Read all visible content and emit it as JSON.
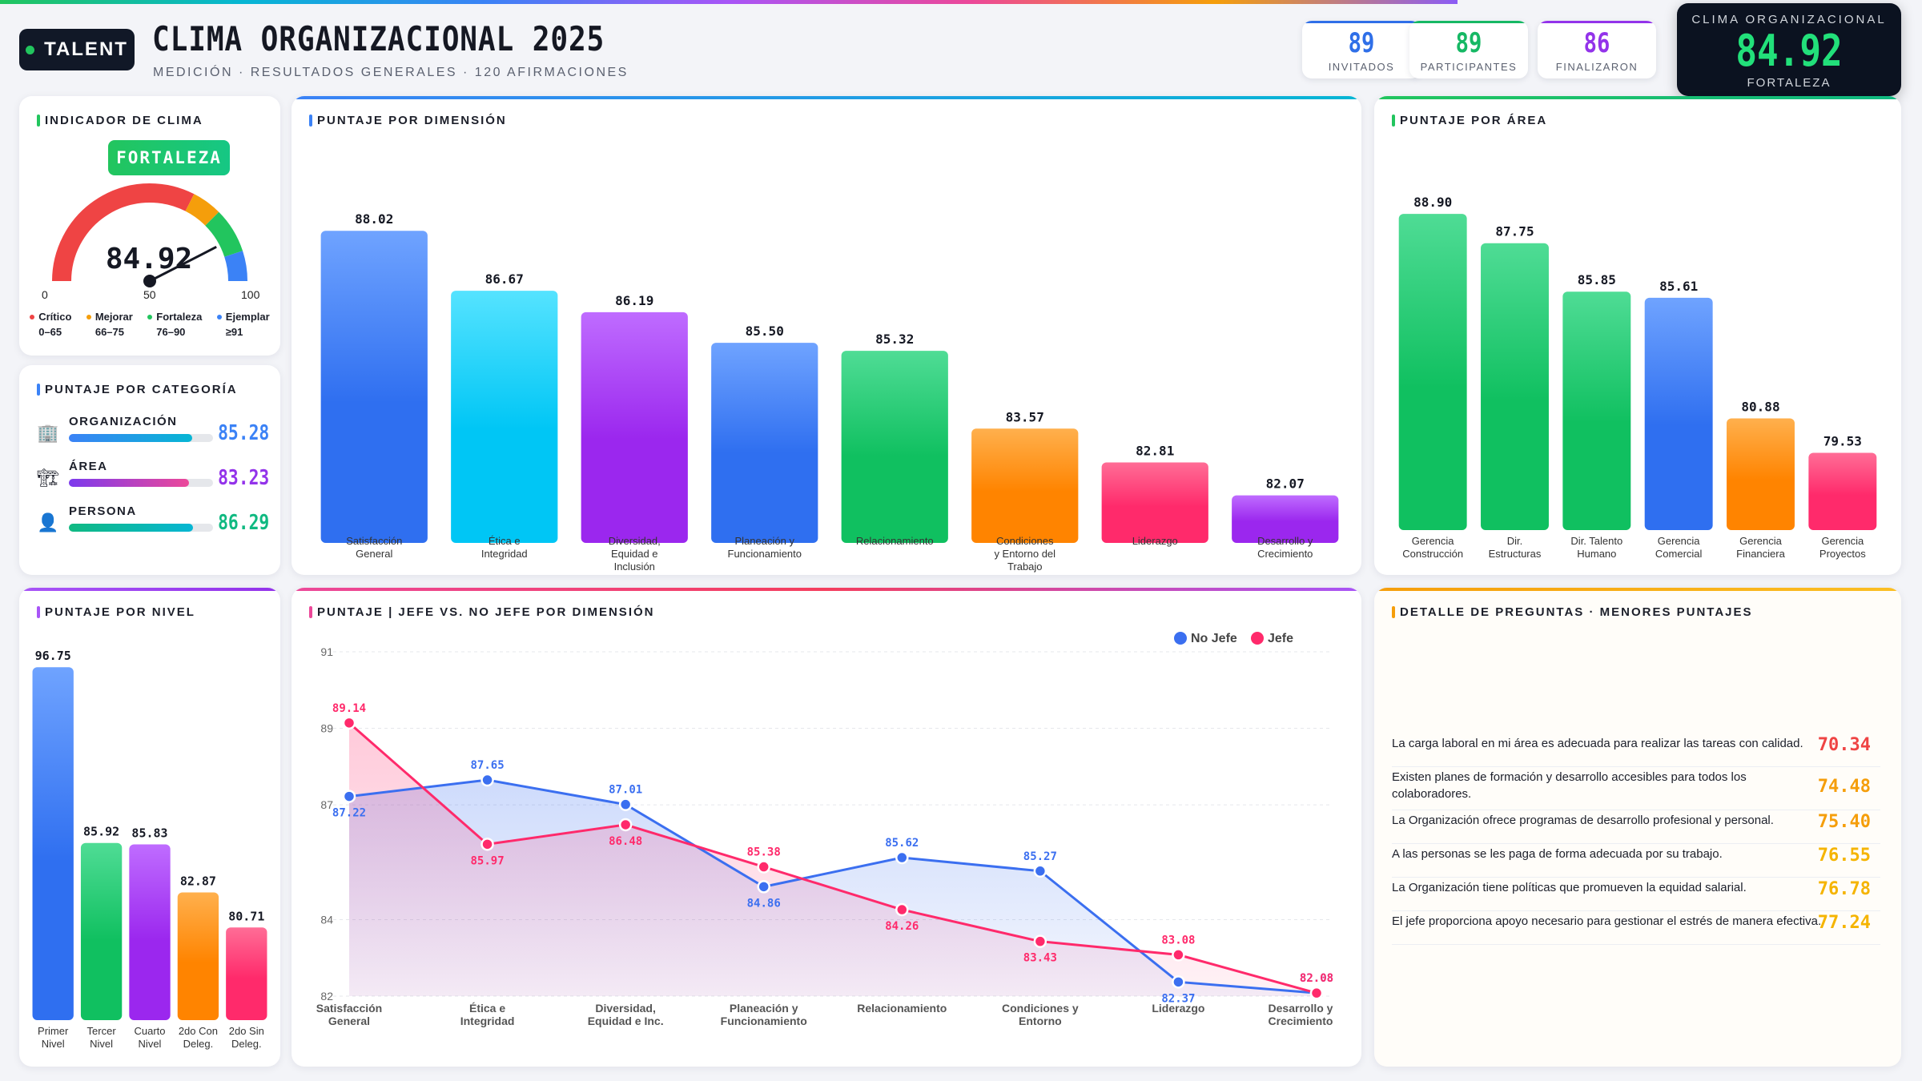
{
  "header": {
    "logo": "TALENT",
    "title": "CLIMA ORGANIZACIONAL 2025",
    "subtitle": "MEDICIÓN · RESULTADOS GENERALES · 120 AFIRMACIONES",
    "stats": [
      {
        "value": "89",
        "label": "INVITADOS",
        "color": "#2f6fe8"
      },
      {
        "value": "89",
        "label": "PARTICIPANTES",
        "color": "#16b864"
      },
      {
        "value": "86",
        "label": "FINALIZARON",
        "color": "#9333ea"
      }
    ],
    "hero": {
      "title": "CLIMA ORGANIZACIONAL",
      "value": "84.92",
      "label": "FORTALEZA"
    }
  },
  "gauge": {
    "title": "INDICADOR DE CLIMA",
    "badge": "FORTALEZA",
    "value": 84.92,
    "value_text": "84.92",
    "min": "0",
    "mid": "50",
    "max": "100",
    "legend": [
      {
        "name": "Crítico",
        "range": "0–65",
        "color": "#ef4444"
      },
      {
        "name": "Mejorar",
        "range": "66–75",
        "color": "#f59e0b"
      },
      {
        "name": "Fortaleza",
        "range": "76–90",
        "color": "#22c55e"
      },
      {
        "name": "Ejemplar",
        "range": "≥91",
        "color": "#3b82f6"
      }
    ]
  },
  "categories": {
    "title": "PUNTAJE POR CATEGORÍA",
    "items": [
      {
        "name": "ORGANIZACIÓN",
        "value": 85.28,
        "value_text": "85.28",
        "icon": "building-icon",
        "glyph": "🏢",
        "color": "#3b82f6"
      },
      {
        "name": "ÁREA",
        "value": 83.23,
        "value_text": "83.23",
        "icon": "crane-icon",
        "glyph": "🏗",
        "color": "#9333ea"
      },
      {
        "name": "PERSONA",
        "value": 86.29,
        "value_text": "86.29",
        "icon": "person-icon",
        "glyph": "👤",
        "color": "#10b981"
      }
    ]
  },
  "dimension_chart": {
    "title": "PUNTAJE POR DIMENSIÓN",
    "chart_data": {
      "type": "bar",
      "categories": [
        [
          "Satisfacción",
          "General"
        ],
        [
          "Ética e",
          "Integridad"
        ],
        [
          "Diversidad,",
          "Equidad e",
          "Inclusión"
        ],
        [
          "Planeación y",
          "Funcionamiento"
        ],
        [
          "Relacionamiento"
        ],
        [
          "Condiciones",
          "y Entorno del",
          "Trabajo"
        ],
        [
          "Liderazgo"
        ],
        [
          "Desarrollo y",
          "Crecimiento"
        ]
      ],
      "values": [
        88.02,
        86.67,
        86.19,
        85.5,
        85.32,
        83.57,
        82.81,
        82.07
      ],
      "labels": [
        "88.02",
        "86.67",
        "86.19",
        "85.50",
        "85.32",
        "83.57",
        "82.81",
        "82.07"
      ],
      "colors": [
        [
          "#6fa3ff",
          "#2f6ff0"
        ],
        [
          "#55e3ff",
          "#00c6f5"
        ],
        [
          "#bf6cff",
          "#9b27ee"
        ],
        [
          "#6fa3ff",
          "#2f6ff0"
        ],
        [
          "#4fdc95",
          "#10c060"
        ],
        [
          "#ffb04d",
          "#ff8400"
        ],
        [
          "#ff6d96",
          "#ff2a6b"
        ],
        [
          "#bf6cff",
          "#9b27ee"
        ]
      ]
    }
  },
  "area_chart": {
    "title": "PUNTAJE POR ÁREA",
    "chart_data": {
      "type": "bar",
      "categories": [
        [
          "Gerencia",
          "Construcción"
        ],
        [
          "Dir.",
          "Estructuras"
        ],
        [
          "Dir. Talento",
          "Humano"
        ],
        [
          "Gerencia",
          "Comercial"
        ],
        [
          "Gerencia",
          "Financiera"
        ],
        [
          "Gerencia",
          "Proyectos"
        ]
      ],
      "values": [
        88.9,
        87.75,
        85.85,
        85.61,
        80.88,
        79.53
      ],
      "labels": [
        "88.90",
        "87.75",
        "85.85",
        "85.61",
        "80.88",
        "79.53"
      ],
      "colors": [
        [
          "#4fdc95",
          "#10c060"
        ],
        [
          "#4fdc95",
          "#10c060"
        ],
        [
          "#4fdc95",
          "#10c060"
        ],
        [
          "#6fa3ff",
          "#2f6ff0"
        ],
        [
          "#ffb04d",
          "#ff8400"
        ],
        [
          "#ff6d96",
          "#ff2a6b"
        ]
      ]
    }
  },
  "level_chart": {
    "title": "PUNTAJE POR NIVEL",
    "chart_data": {
      "type": "bar",
      "categories": [
        [
          "Primer",
          "Nivel"
        ],
        [
          "Tercer",
          "Nivel"
        ],
        [
          "Cuarto",
          "Nivel"
        ],
        [
          "2do Con",
          "Deleg."
        ],
        [
          "2do Sin",
          "Deleg."
        ]
      ],
      "values": [
        96.75,
        85.92,
        85.83,
        82.87,
        80.71
      ],
      "labels": [
        "96.75",
        "85.92",
        "85.83",
        "82.87",
        "80.71"
      ],
      "colors": [
        [
          "#6fa3ff",
          "#2f6ff0"
        ],
        [
          "#4fdc95",
          "#10c060"
        ],
        [
          "#bf6cff",
          "#9b27ee"
        ],
        [
          "#ffb04d",
          "#ff8400"
        ],
        [
          "#ff6d96",
          "#ff2a6b"
        ]
      ]
    }
  },
  "line_chart": {
    "title": "PUNTAJE | JEFE VS. NO JEFE POR DIMENSIÓN",
    "chart_data": {
      "type": "line",
      "categories": [
        [
          "Satisfacción",
          "General"
        ],
        [
          "Ética e",
          "Integridad"
        ],
        [
          "Diversidad,",
          "Equidad e Inc."
        ],
        [
          "Planeación y",
          "Funcionamiento"
        ],
        [
          "Relacionamiento"
        ],
        [
          "Condiciones y",
          "Entorno"
        ],
        [
          "Liderazgo"
        ],
        [
          "Desarrollo y",
          "Crecimiento"
        ]
      ],
      "y_ticks": [
        "82",
        "84",
        "87",
        "89",
        "91"
      ],
      "series": [
        {
          "name": "No Jefe",
          "color": "#3b6ff0",
          "values": [
            87.22,
            87.65,
            87.01,
            84.86,
            85.62,
            85.27,
            82.37,
            82.08
          ],
          "labels": [
            "87.22",
            "87.65",
            "87.01",
            "84.86",
            "85.62",
            "85.27",
            "82.37",
            "82.08"
          ]
        },
        {
          "name": "Jefe",
          "color": "#ff2a6b",
          "values": [
            89.14,
            85.97,
            86.48,
            85.38,
            84.26,
            83.43,
            83.08,
            82.08
          ],
          "labels": [
            "89.14",
            "85.97",
            "86.48",
            "85.38",
            "84.26",
            "83.43",
            "83.08",
            "82.08"
          ]
        }
      ]
    }
  },
  "questions": {
    "title": "DETALLE DE PREGUNTAS · MENORES PUNTAJES",
    "items": [
      {
        "text": "La carga laboral en mi área es adecuada para realizar las tareas con calidad.",
        "score": "70.34",
        "color": "#ef4444"
      },
      {
        "text": "Existen planes de formación y desarrollo accesibles para todos los colaboradores.",
        "score": "74.48",
        "color": "#f59e0b"
      },
      {
        "text": "La Organización ofrece programas de desarrollo profesional y personal.",
        "score": "75.40",
        "color": "#f59e0b"
      },
      {
        "text": "A las personas se les paga de forma adecuada por su trabajo.",
        "score": "76.55",
        "color": "#f5b400"
      },
      {
        "text": "La Organización tiene políticas que promueven la equidad salarial.",
        "score": "76.78",
        "color": "#f5b400"
      },
      {
        "text": "El jefe proporciona apoyo necesario para gestionar el estrés de manera efectiva.",
        "score": "77.24",
        "color": "#f5b400"
      }
    ]
  }
}
